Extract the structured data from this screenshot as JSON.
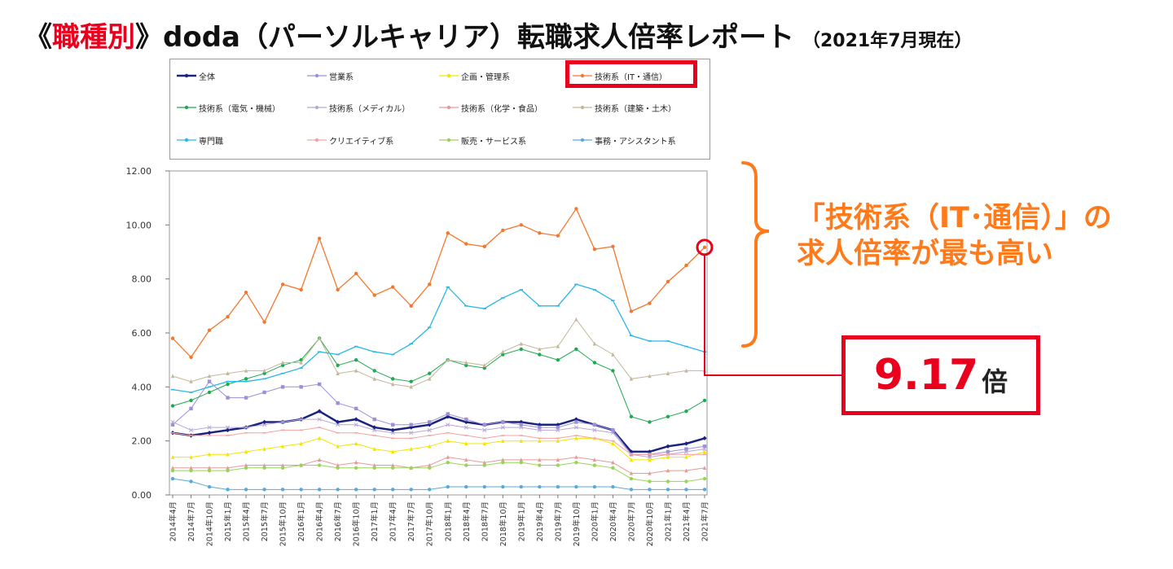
{
  "header": {
    "open_bracket": "《",
    "highlight": "職種別",
    "close_bracket": "》",
    "main": " doda（パーソルキャリア）転職求人倍率レポート",
    "subtitle": "（2021年7月現在）"
  },
  "callout": {
    "line1": "「技術系（IT･通信）」の",
    "line2": "求人倍率が最も高い"
  },
  "highlight_value": {
    "number": "9.17",
    "unit": "倍"
  },
  "colors": {
    "accent_red": "#e8001c",
    "callout_orange": "#ff7a1a"
  },
  "chart_data": {
    "type": "line",
    "x_labels": [
      "2014年4月",
      "2014年7月",
      "2014年10月",
      "2015年1月",
      "2015年4月",
      "2015年7月",
      "2015年10月",
      "2016年1月",
      "2016年4月",
      "2016年7月",
      "2016年10月",
      "2017年1月",
      "2017年4月",
      "2017年7月",
      "2017年10月",
      "2018年1月",
      "2018年4月",
      "2018年7月",
      "2018年10月",
      "2019年1月",
      "2019年4月",
      "2019年7月",
      "2019年10月",
      "2020年1月",
      "2020年4月",
      "2020年7月",
      "2020年10月",
      "2021年1月",
      "2021年4月",
      "2021年7月"
    ],
    "ylim": [
      0,
      12
    ],
    "yticks": [
      "0.00",
      "2.00",
      "4.00",
      "6.00",
      "8.00",
      "10.00",
      "12.00"
    ],
    "legend_position": "top",
    "series": [
      {
        "name": "全体",
        "color": "#1a237e",
        "marker": "diamond",
        "width": 2.5,
        "values": [
          2.3,
          2.2,
          2.3,
          2.4,
          2.5,
          2.7,
          2.7,
          2.8,
          3.1,
          2.7,
          2.8,
          2.5,
          2.4,
          2.5,
          2.6,
          2.9,
          2.7,
          2.6,
          2.7,
          2.7,
          2.6,
          2.6,
          2.8,
          2.6,
          2.4,
          1.6,
          1.6,
          1.8,
          1.9,
          2.1
        ]
      },
      {
        "name": "営業系",
        "color": "#9e8fd6",
        "marker": "square",
        "width": 1,
        "values": [
          2.6,
          3.2,
          4.2,
          3.6,
          3.6,
          3.8,
          4.0,
          4.0,
          4.1,
          3.4,
          3.2,
          2.8,
          2.6,
          2.6,
          2.7,
          3.0,
          2.8,
          2.6,
          2.7,
          2.6,
          2.5,
          2.5,
          2.7,
          2.6,
          2.4,
          1.5,
          1.5,
          1.6,
          1.7,
          1.8
        ]
      },
      {
        "name": "企画・管理系",
        "color": "#f2e600",
        "marker": "triangle",
        "width": 1,
        "values": [
          1.4,
          1.4,
          1.5,
          1.5,
          1.6,
          1.7,
          1.8,
          1.9,
          2.1,
          1.8,
          1.9,
          1.7,
          1.6,
          1.7,
          1.8,
          2.0,
          1.9,
          1.9,
          2.0,
          2.0,
          2.0,
          2.0,
          2.1,
          2.1,
          1.9,
          1.3,
          1.3,
          1.4,
          1.4,
          1.6
        ]
      },
      {
        "name": "技術系（IT・通信）",
        "color": "#f4772e",
        "marker": "circle",
        "width": 1.3,
        "values": [
          5.8,
          5.1,
          6.1,
          6.6,
          7.5,
          6.4,
          7.8,
          7.6,
          9.5,
          7.6,
          8.2,
          7.4,
          7.7,
          7.0,
          7.8,
          9.7,
          9.3,
          9.2,
          9.8,
          10.0,
          9.7,
          9.6,
          10.6,
          9.1,
          9.2,
          6.8,
          7.1,
          7.9,
          8.5,
          9.17
        ]
      },
      {
        "name": "技術系（電気・機械）",
        "color": "#1faa50",
        "marker": "circle",
        "width": 1,
        "values": [
          3.3,
          3.5,
          3.8,
          4.1,
          4.3,
          4.5,
          4.8,
          5.0,
          5.8,
          4.8,
          5.0,
          4.6,
          4.3,
          4.2,
          4.5,
          5.0,
          4.8,
          4.7,
          5.2,
          5.4,
          5.2,
          5.0,
          5.4,
          4.9,
          4.6,
          2.9,
          2.7,
          2.9,
          3.1,
          3.5
        ]
      },
      {
        "name": "技術系（メディカル）",
        "color": "#b7a7d8",
        "marker": "cross",
        "width": 1,
        "values": [
          2.7,
          2.4,
          2.5,
          2.5,
          2.5,
          2.6,
          2.7,
          2.8,
          2.8,
          2.6,
          2.6,
          2.4,
          2.3,
          2.3,
          2.4,
          2.6,
          2.5,
          2.4,
          2.5,
          2.5,
          2.4,
          2.4,
          2.5,
          2.4,
          2.3,
          1.5,
          1.4,
          1.5,
          1.6,
          1.7
        ]
      },
      {
        "name": "技術系（化学・食品）",
        "color": "#e49a9a",
        "marker": "triangle",
        "width": 1,
        "values": [
          1.0,
          1.0,
          1.0,
          1.0,
          1.1,
          1.1,
          1.1,
          1.1,
          1.3,
          1.1,
          1.2,
          1.1,
          1.1,
          1.0,
          1.1,
          1.4,
          1.3,
          1.2,
          1.3,
          1.3,
          1.3,
          1.3,
          1.4,
          1.3,
          1.2,
          0.8,
          0.8,
          0.9,
          0.9,
          1.0
        ]
      },
      {
        "name": "技術系（建築・土木）",
        "color": "#c2b89b",
        "marker": "triangle",
        "width": 1,
        "values": [
          4.4,
          4.2,
          4.4,
          4.5,
          4.6,
          4.6,
          4.9,
          4.9,
          5.8,
          4.5,
          4.6,
          4.3,
          4.1,
          4.0,
          4.3,
          5.0,
          4.9,
          4.8,
          5.3,
          5.6,
          5.4,
          5.5,
          6.5,
          5.6,
          5.2,
          4.3,
          4.4,
          4.5,
          4.6,
          4.6
        ]
      },
      {
        "name": "専門職",
        "color": "#29b6e8",
        "marker": "dash",
        "width": 1.3,
        "values": [
          3.9,
          3.8,
          4.0,
          4.2,
          4.2,
          4.3,
          4.5,
          4.7,
          5.3,
          5.2,
          5.5,
          5.3,
          5.2,
          5.6,
          6.2,
          7.7,
          7.0,
          6.9,
          7.3,
          7.6,
          7.0,
          7.0,
          7.8,
          7.6,
          7.2,
          5.9,
          5.7,
          5.7,
          5.5,
          5.3
        ]
      },
      {
        "name": "クリエイティブ系",
        "color": "#f7a3a3",
        "marker": "dash",
        "width": 1,
        "values": [
          2.3,
          2.2,
          2.2,
          2.2,
          2.3,
          2.3,
          2.4,
          2.4,
          2.5,
          2.3,
          2.3,
          2.2,
          2.1,
          2.1,
          2.2,
          2.3,
          2.2,
          2.1,
          2.2,
          2.2,
          2.1,
          2.1,
          2.2,
          2.1,
          2.0,
          1.5,
          1.5,
          1.5,
          1.5,
          1.5
        ]
      },
      {
        "name": "販売・サービス系",
        "color": "#9bd35a",
        "marker": "circle",
        "width": 1,
        "values": [
          0.9,
          0.9,
          0.9,
          0.9,
          1.0,
          1.0,
          1.0,
          1.1,
          1.1,
          1.0,
          1.0,
          1.0,
          1.0,
          1.0,
          1.0,
          1.2,
          1.1,
          1.1,
          1.2,
          1.2,
          1.1,
          1.1,
          1.2,
          1.1,
          1.0,
          0.6,
          0.5,
          0.5,
          0.5,
          0.6
        ]
      },
      {
        "name": "事務・アシスタント系",
        "color": "#5aa9d6",
        "marker": "circle",
        "width": 1,
        "values": [
          0.6,
          0.5,
          0.3,
          0.2,
          0.2,
          0.2,
          0.2,
          0.2,
          0.2,
          0.2,
          0.2,
          0.2,
          0.2,
          0.2,
          0.2,
          0.3,
          0.3,
          0.3,
          0.3,
          0.3,
          0.3,
          0.3,
          0.3,
          0.3,
          0.3,
          0.2,
          0.2,
          0.2,
          0.2,
          0.2
        ]
      }
    ]
  }
}
